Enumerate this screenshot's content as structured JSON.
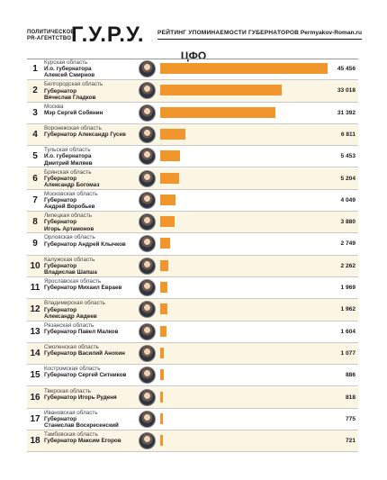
{
  "header": {
    "brand_line1": "ПОЛИТИЧЕСКОЕ",
    "brand_line2": "PR-АГЕНТСТВО",
    "brand_name": "Г.У.Р.У.",
    "subtitle": "РЕЙТИНГ УПОМИНАЕМОСТИ ГУБЕРНАТОРОВ",
    "site": "Permyakov-Roman.ru"
  },
  "chart_data": {
    "type": "bar",
    "title": "ЦФО",
    "max": 45456,
    "items": [
      {
        "rank": "1",
        "region": "Курская область",
        "line1": "И.о. губернатора",
        "line2": "Алексей Смирнов",
        "value": 45456,
        "label": "45 456"
      },
      {
        "rank": "2",
        "region": "Белгородская область",
        "line1": "Губернатор",
        "line2": "Вячеслав Гладков",
        "value": 33018,
        "label": "33 018"
      },
      {
        "rank": "3",
        "region": "Москва",
        "line1": "Мэр Сергей Собянин",
        "line2": "",
        "value": 31392,
        "label": "31 392"
      },
      {
        "rank": "4",
        "region": "Воронежская область",
        "line1": "Губернатор Александр Гусев",
        "line2": "",
        "value": 6811,
        "label": "6 811"
      },
      {
        "rank": "5",
        "region": "Тульская область",
        "line1": "И.о. губернатора",
        "line2": "Дмитрий Миляев",
        "value": 5453,
        "label": "5 453"
      },
      {
        "rank": "6",
        "region": "Брянская область",
        "line1": "Губернатор",
        "line2": "Александр Богомаз",
        "value": 5204,
        "label": "5 204"
      },
      {
        "rank": "7",
        "region": "Московская область",
        "line1": "Губернатор",
        "line2": "Андрей Воробьев",
        "value": 4049,
        "label": "4 049"
      },
      {
        "rank": "8",
        "region": "Липецкая область",
        "line1": "Губернатор",
        "line2": "Игорь Артамонов",
        "value": 3880,
        "label": "3 880"
      },
      {
        "rank": "9",
        "region": "Орловская область",
        "line1": "Губернатор Андрей Клычков",
        "line2": "",
        "value": 2749,
        "label": "2 749"
      },
      {
        "rank": "10",
        "region": "Калужская область",
        "line1": "Губернатор",
        "line2": "Владислав Шапша",
        "value": 2262,
        "label": "2 262"
      },
      {
        "rank": "11",
        "region": "Ярославская область",
        "line1": "Губернатор Михаил Евраев",
        "line2": "",
        "value": 1969,
        "label": "1 969"
      },
      {
        "rank": "12",
        "region": "Владимирская область",
        "line1": "Губернатор",
        "line2": "Александр Авдеев",
        "value": 1962,
        "label": "1 962"
      },
      {
        "rank": "13",
        "region": "Рязанская область",
        "line1": "Губернатор Павел Малков",
        "line2": "",
        "value": 1604,
        "label": "1 604"
      },
      {
        "rank": "14",
        "region": "Смоленская область",
        "line1": "Губернатор Василий Анохин",
        "line2": "",
        "value": 1077,
        "label": "1 077"
      },
      {
        "rank": "15",
        "region": "Костромская область",
        "line1": "Губернатор Сергей Ситников",
        "line2": "",
        "value": 886,
        "label": "886"
      },
      {
        "rank": "16",
        "region": "Тверская область",
        "line1": "Губернатор Игорь Руденя",
        "line2": "",
        "value": 818,
        "label": "818"
      },
      {
        "rank": "17",
        "region": "Ивановская область",
        "line1": "Губернатор",
        "line2": "Станислав Воскресенский",
        "value": 775,
        "label": "775"
      },
      {
        "rank": "18",
        "region": "Тамбовская область",
        "line1": "Губернатор Максим Егоров",
        "line2": "",
        "value": 721,
        "label": "721"
      }
    ]
  }
}
